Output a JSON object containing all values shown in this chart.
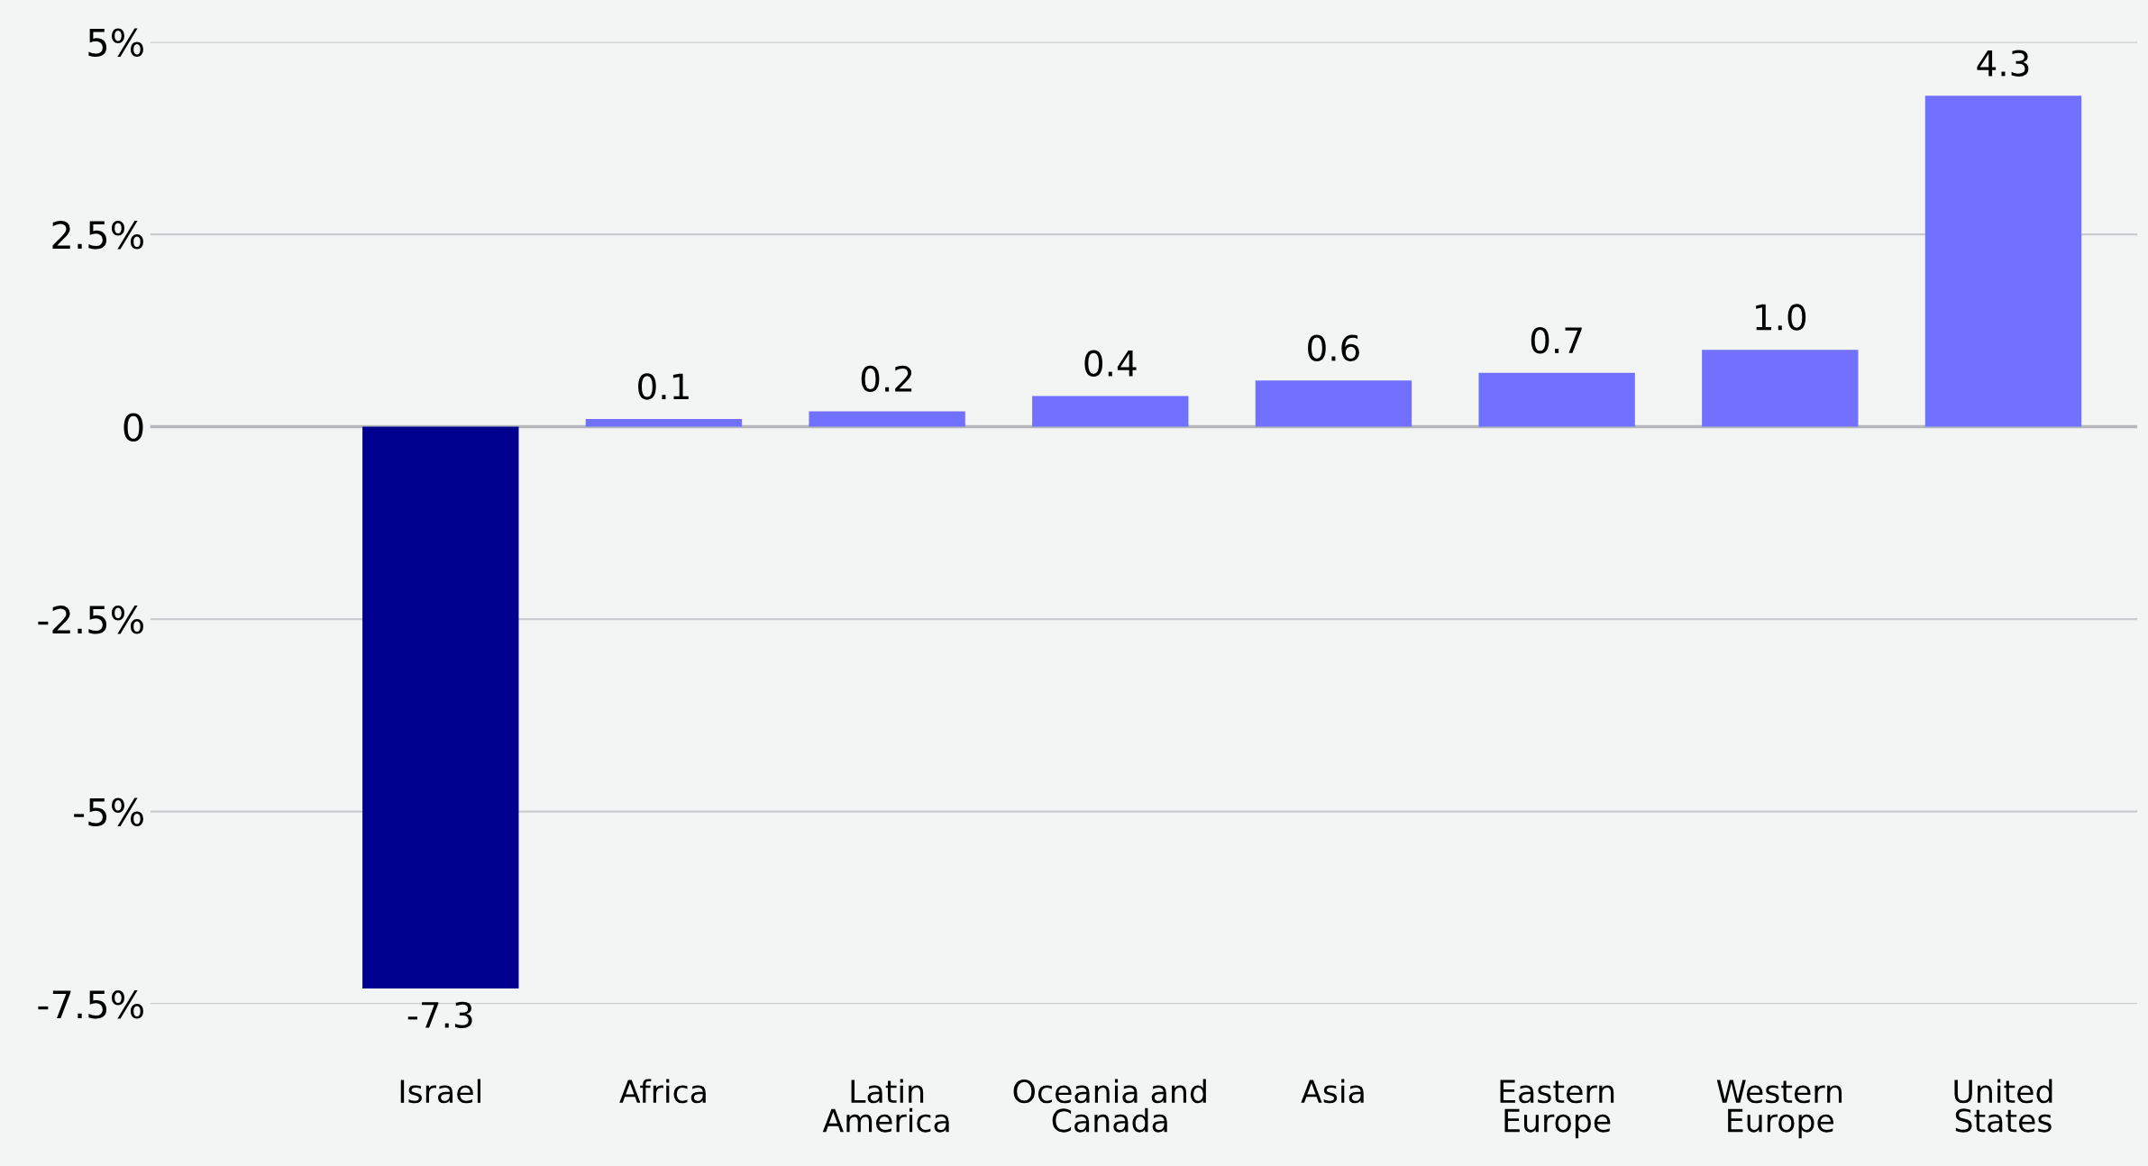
{
  "chart_data": {
    "type": "bar",
    "categories": [
      "Israel",
      "Africa",
      "Latin\nAmerica",
      "Oceania and\nCanada",
      "Asia",
      "Eastern\nEurope",
      "Western\nEurope",
      "United\nStates"
    ],
    "values": [
      -7.3,
      0.1,
      0.2,
      0.4,
      0.6,
      0.7,
      1.0,
      4.3
    ],
    "colors": [
      "#00008f",
      "#7270ff",
      "#7270ff",
      "#7270ff",
      "#7270ff",
      "#7270ff",
      "#7270ff",
      "#7270ff"
    ],
    "ylim": [
      -7.5,
      5
    ],
    "value_labels": [
      "-7.3",
      "0.1",
      "0.2",
      "0.4",
      "0.6",
      "0.7",
      "1.0",
      "4.3"
    ],
    "yticks": [
      {
        "value": 5,
        "label": "5%"
      },
      {
        "value": 2.5,
        "label": "2.5%"
      },
      0,
      {
        "value": -2.5,
        "label": "-2.5%"
      },
      {
        "value": -5,
        "label": "-5%"
      },
      {
        "value": -7.5,
        "label": "-7.5%"
      }
    ],
    "ref_lines": [
      {
        "axis": "y",
        "value": 0,
        "color": "#b4b8ba"
      }
    ],
    "grid": "y"
  }
}
